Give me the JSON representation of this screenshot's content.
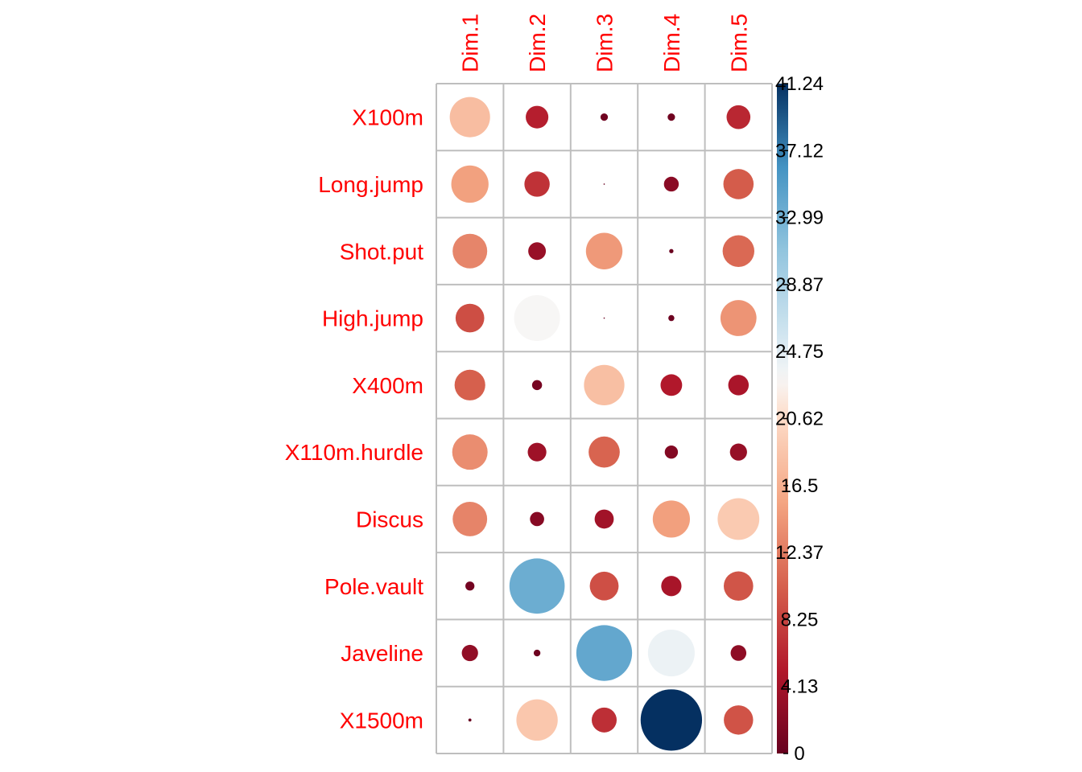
{
  "chart_data": {
    "type": "heatmap",
    "style": "correlation-circle-plot",
    "rows": [
      "X100m",
      "Long.jump",
      "Shot.put",
      "High.jump",
      "X400m",
      "X110m.hurdle",
      "Discus",
      "Pole.vault",
      "Javeline",
      "X1500m"
    ],
    "columns": [
      "Dim.1",
      "Dim.2",
      "Dim.3",
      "Dim.4",
      "Dim.5"
    ],
    "values": [
      [
        17.8,
        5.6,
        0.6,
        0.6,
        6.2
      ],
      [
        15.2,
        7.0,
        0.02,
        2.4,
        10.0
      ],
      [
        13.1,
        3.4,
        14.6,
        0.2,
        11.0
      ],
      [
        9.0,
        23.0,
        0.02,
        0.4,
        14.2
      ],
      [
        10.3,
        1.1,
        17.9,
        5.1,
        4.6
      ],
      [
        13.7,
        3.8,
        10.6,
        1.9,
        3.2
      ],
      [
        13.0,
        2.2,
        4.0,
        15.1,
        19.0
      ],
      [
        0.9,
        33.4,
        9.1,
        4.5,
        9.5
      ],
      [
        2.9,
        0.5,
        34.0,
        23.9,
        2.7
      ],
      [
        0.1,
        18.7,
        6.8,
        41.24,
        9.4
      ]
    ],
    "colorbar": {
      "min": 0,
      "max": 41.24,
      "ticks": [
        "41.24",
        "37.12",
        "32.99",
        "28.87",
        "24.75",
        "20.62",
        "16.5",
        "12.37",
        "8.25",
        "4.13",
        "0"
      ]
    },
    "colors": {
      "low": "#67001f",
      "mid": "#f7f7f7",
      "high": "#053061",
      "label": "#ff0000",
      "grid": "#bebebe"
    },
    "legend": "right"
  }
}
